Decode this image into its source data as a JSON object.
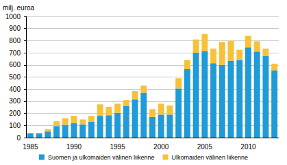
{
  "chart_data": {
    "type": "bar",
    "stacked": true,
    "grid": true,
    "legend": "bottom",
    "y_label": "milj. euroa",
    "categories": [
      "1985",
      null,
      null,
      null,
      null,
      "1990",
      null,
      null,
      null,
      null,
      "1995",
      null,
      null,
      null,
      null,
      "2000",
      null,
      null,
      null,
      null,
      "2005",
      null,
      null,
      null,
      null,
      "2010",
      null,
      null,
      null
    ],
    "series": [
      {
        "name": "Suomen ja ulkomaiden välinen liikenne",
        "color": "#1f9bd7",
        "values": [
          35,
          35,
          50,
          95,
          105,
          120,
          110,
          130,
          180,
          185,
          205,
          260,
          315,
          370,
          170,
          190,
          190,
          405,
          565,
          700,
          715,
          615,
          600,
          635,
          640,
          745,
          710,
          675,
          555
        ]
      },
      {
        "name": "Ulkomaiden välinen liikenne",
        "color": "#f7c23b",
        "values": [
          5,
          5,
          20,
          40,
          55,
          60,
          40,
          50,
          95,
          70,
          75,
          50,
          70,
          60,
          65,
          90,
          75,
          85,
          75,
          110,
          140,
          120,
          190,
          165,
          85,
          95,
          85,
          60,
          55
        ]
      }
    ],
    "ylim": [
      0,
      1000
    ],
    "yticks": [
      0,
      100,
      200,
      300,
      400,
      500,
      600,
      700,
      800,
      900,
      1000
    ]
  }
}
